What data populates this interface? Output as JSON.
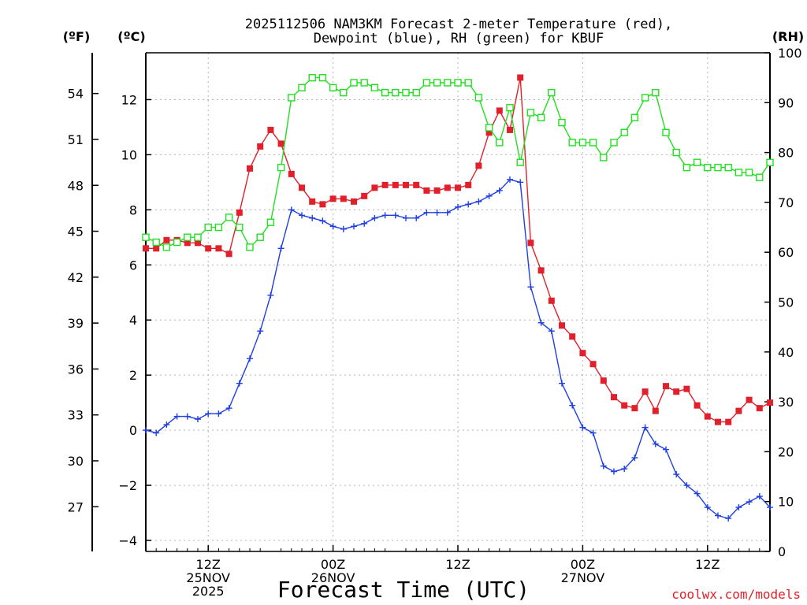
{
  "chart_data": {
    "type": "line",
    "title": [
      "2025112506 NAM3KM Forecast 2-meter Temperature (red),",
      "Dewpoint (blue), RH (green) for KBUF"
    ],
    "xlabel": "Forecast Time (UTC)",
    "units": {
      "far_left": "(ºF)",
      "left": "(ºC)",
      "right": "(RH)"
    },
    "source": "coolwx.com/models",
    "x_range_hours": [
      0,
      60
    ],
    "x_ticks": [
      {
        "hour": 6,
        "lines": [
          "12Z",
          "25NOV",
          "2025"
        ]
      },
      {
        "hour": 18,
        "lines": [
          "00Z",
          "26NOV"
        ]
      },
      {
        "hour": 30,
        "lines": [
          "12Z"
        ]
      },
      {
        "hour": 42,
        "lines": [
          "00Z",
          "27NOV"
        ]
      },
      {
        "hour": 54,
        "lines": [
          "12Z"
        ]
      }
    ],
    "y_left_celsius": {
      "range": [
        -4.4,
        13.7
      ],
      "ticks": [
        -4,
        -2,
        0,
        2,
        4,
        6,
        8,
        10,
        12
      ]
    },
    "y_far_left_fahrenheit": {
      "ticks": [
        27,
        30,
        33,
        36,
        39,
        42,
        45,
        48,
        51,
        54
      ]
    },
    "y_right_rh": {
      "range": [
        0,
        100
      ],
      "ticks": [
        0,
        10,
        20,
        30,
        40,
        50,
        60,
        70,
        80,
        90,
        100
      ]
    },
    "grid": true,
    "series": [
      {
        "name": "2-meter Temperature",
        "color": "#e0202a",
        "axis": "celsius",
        "marker": "filled-square",
        "x": [
          0,
          1,
          2,
          3,
          4,
          5,
          6,
          7,
          8,
          9,
          10,
          11,
          12,
          13,
          14,
          15,
          16,
          17,
          18,
          19,
          20,
          21,
          22,
          23,
          24,
          25,
          26,
          27,
          28,
          29,
          30,
          31,
          32,
          33,
          34,
          35,
          36,
          37,
          38,
          39,
          40,
          41,
          42,
          43,
          44,
          45,
          46,
          47,
          48,
          49,
          50,
          51,
          52,
          53,
          54,
          55,
          56,
          57,
          58,
          59,
          60
        ],
        "values": [
          6.6,
          6.6,
          6.9,
          6.9,
          6.8,
          6.8,
          6.6,
          6.6,
          6.4,
          7.9,
          9.5,
          10.3,
          10.9,
          10.4,
          9.3,
          8.8,
          8.3,
          8.2,
          8.4,
          8.4,
          8.3,
          8.5,
          8.8,
          8.9,
          8.9,
          8.9,
          8.9,
          8.7,
          8.7,
          8.8,
          8.8,
          8.9,
          9.6,
          10.8,
          11.6,
          10.9,
          12.8,
          6.8,
          5.8,
          4.7,
          3.8,
          3.4,
          2.8,
          2.4,
          1.8,
          1.2,
          0.9,
          0.8,
          1.4,
          0.7,
          1.6,
          1.4,
          1.5,
          0.9,
          0.5,
          0.3,
          0.3,
          0.7,
          1.1,
          0.8,
          1.0
        ]
      },
      {
        "name": "Dewpoint",
        "color": "#1f3fe0",
        "axis": "celsius",
        "marker": "plus",
        "x": [
          0,
          1,
          2,
          3,
          4,
          5,
          6,
          7,
          8,
          9,
          10,
          11,
          12,
          13,
          14,
          15,
          16,
          17,
          18,
          19,
          20,
          21,
          22,
          23,
          24,
          25,
          26,
          27,
          28,
          29,
          30,
          31,
          32,
          33,
          34,
          35,
          36,
          37,
          38,
          39,
          40,
          41,
          42,
          43,
          44,
          45,
          46,
          47,
          48,
          49,
          50,
          51,
          52,
          53,
          54,
          55,
          56,
          57,
          58,
          59,
          60
        ],
        "values": [
          0.0,
          -0.1,
          0.2,
          0.5,
          0.5,
          0.4,
          0.6,
          0.6,
          0.8,
          1.7,
          2.6,
          3.6,
          4.9,
          6.6,
          8.0,
          7.8,
          7.7,
          7.6,
          7.4,
          7.3,
          7.4,
          7.5,
          7.7,
          7.8,
          7.8,
          7.7,
          7.7,
          7.9,
          7.9,
          7.9,
          8.1,
          8.2,
          8.3,
          8.5,
          8.7,
          9.1,
          9.0,
          5.2,
          3.9,
          3.6,
          1.7,
          0.9,
          0.1,
          -0.1,
          -1.3,
          -1.5,
          -1.4,
          -1.0,
          0.1,
          -0.5,
          -0.7,
          -1.6,
          -2.0,
          -2.3,
          -2.8,
          -3.1,
          -3.2,
          -2.8,
          -2.6,
          -2.4,
          -2.8
        ]
      },
      {
        "name": "RH",
        "color": "#20e020",
        "axis": "rh",
        "marker": "open-square",
        "x": [
          0,
          1,
          2,
          3,
          4,
          5,
          6,
          7,
          8,
          9,
          10,
          11,
          12,
          13,
          14,
          15,
          16,
          17,
          18,
          19,
          20,
          21,
          22,
          23,
          24,
          25,
          26,
          27,
          28,
          29,
          30,
          31,
          32,
          33,
          34,
          35,
          36,
          37,
          38,
          39,
          40,
          41,
          42,
          43,
          44,
          45,
          46,
          47,
          48,
          49,
          50,
          51,
          52,
          53,
          54,
          55,
          56,
          57,
          58,
          59,
          60
        ],
        "values": [
          63,
          62,
          61,
          62,
          63,
          63,
          65,
          65,
          67,
          65,
          61,
          63,
          66,
          77,
          91,
          93,
          95,
          95,
          93,
          92,
          94,
          94,
          93,
          92,
          92,
          92,
          92,
          94,
          94,
          94,
          94,
          94,
          91,
          85,
          82,
          89,
          78,
          88,
          87,
          92,
          86,
          82,
          82,
          82,
          79,
          82,
          84,
          87,
          91,
          92,
          84,
          80,
          77,
          78,
          77,
          77,
          77,
          76,
          76,
          75,
          78
        ]
      }
    ]
  }
}
